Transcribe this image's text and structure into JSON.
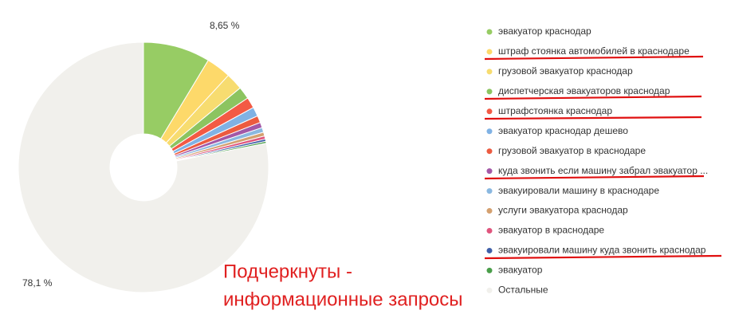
{
  "chart_data": {
    "type": "pie",
    "categories": [
      "эвакуатор краснодар",
      "штраф стоянка автомобилей в краснодаре",
      "грузовой эвакуатор краснодар",
      "диспетчерская эвакуаторов краснодар",
      "штрафстоянка краснодар",
      "эвакуатор краснодар дешево",
      "грузовой эвакуатор в краснодаре",
      "куда звонить если машину забрал эвакуатор ...",
      "эвакуировали машину в краснодаре",
      "услуги эвакуатора краснодар",
      "эвакуатор в краснодаре",
      "эвакуировали машину куда звонить краснодар",
      "эвакуатор",
      "Остальные"
    ],
    "values": [
      8.65,
      3.2,
      2.2,
      1.6,
      1.4,
      1.2,
      0.9,
      0.7,
      0.6,
      0.5,
      0.4,
      0.3,
      0.25,
      78.1
    ],
    "value_labels": [
      "8,65 %",
      null,
      null,
      null,
      null,
      null,
      null,
      null,
      null,
      null,
      null,
      null,
      null,
      "78,1 %"
    ],
    "colors": [
      "#97cc64",
      "#fdd96a",
      "#f7dc70",
      "#8cc460",
      "#f35a44",
      "#80b2e4",
      "#ec5b40",
      "#a358a7",
      "#8ab8e0",
      "#d4a06f",
      "#e0557d",
      "#3f5fa8",
      "#4a9e4a",
      "#f1f0ec"
    ],
    "donut": true,
    "annotation": [
      "Подчеркнуты -",
      "информационные запросы"
    ]
  }
}
